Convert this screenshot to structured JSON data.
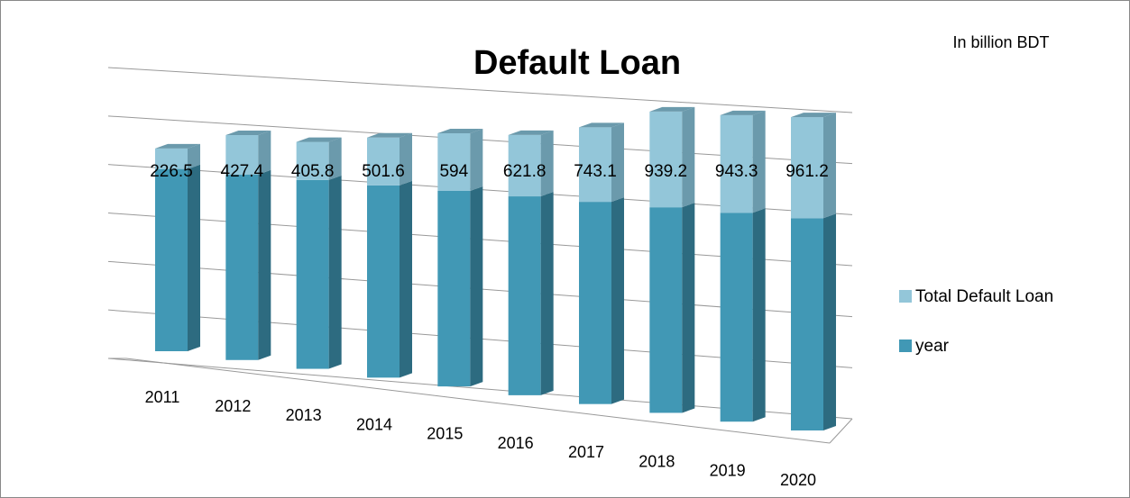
{
  "chart_data": {
    "type": "bar",
    "stacked": true,
    "title": "Default Loan",
    "annotation": "In billion BDT",
    "categories": [
      "2011",
      "2012",
      "2013",
      "2014",
      "2015",
      "2016",
      "2017",
      "2018",
      "2019",
      "2020"
    ],
    "series": [
      {
        "name": "year",
        "color": "#4198b5",
        "side_color": "#2d6b80",
        "values": [
          2011,
          2012,
          2013,
          2014,
          2015,
          2016,
          2017,
          2018,
          2019,
          2020
        ]
      },
      {
        "name": "Total Default Loan",
        "color": "#93c6d9",
        "side_color": "#6b9aac",
        "values": [
          226.5,
          427.4,
          405.8,
          501.6,
          594,
          621.8,
          743.1,
          939.2,
          943.3,
          961.2
        ],
        "show_value_labels": true
      }
    ],
    "ylim": [
      0,
      3000
    ],
    "yticks": [
      0,
      500,
      1000,
      1500,
      2000,
      2500,
      3000
    ],
    "grid": true,
    "legend": "right"
  }
}
